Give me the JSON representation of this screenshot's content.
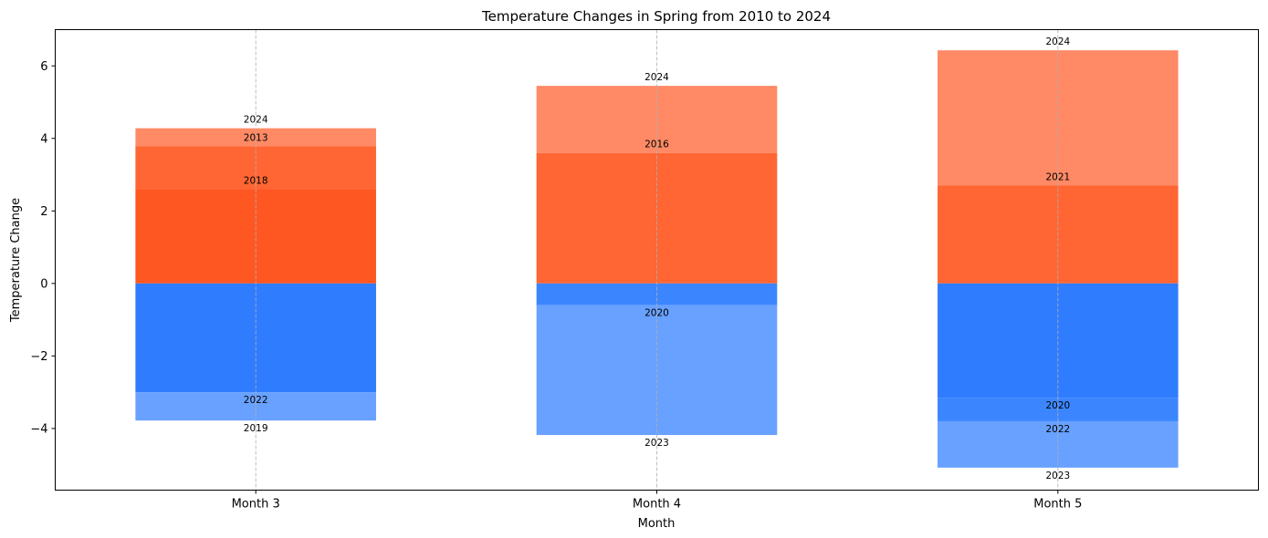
{
  "chart_data": {
    "type": "bar",
    "stacked": true,
    "title": "Temperature Changes in Spring from 2010 to 2024",
    "xlabel": "Month",
    "ylabel": "Temperature Change",
    "ylim": [
      -5.7,
      7.0
    ],
    "yticks": [
      -4,
      -2,
      0,
      2,
      4,
      6
    ],
    "grid": "x-only dashed",
    "categories": [
      "Month 3",
      "Month 4",
      "Month 5"
    ],
    "bars": [
      {
        "category": "Month 3",
        "segments": [
          {
            "year": "2018",
            "value": 2.6,
            "color": "#ff5722"
          },
          {
            "year": "2013",
            "value": 1.18,
            "color": "#ff6633"
          },
          {
            "year": "2024",
            "value": 0.5,
            "color": "#ff8a65"
          },
          {
            "year": "2022",
            "value": -3.0,
            "color": "#2f7cff"
          },
          {
            "year": "2019",
            "value": -0.78,
            "color": "#68a1ff"
          }
        ]
      },
      {
        "category": "Month 4",
        "segments": [
          {
            "year": "2016",
            "value": 3.6,
            "color": "#ff6633"
          },
          {
            "year": "2024",
            "value": 1.85,
            "color": "#ff8a65"
          },
          {
            "year": "2020",
            "value": -0.6,
            "color": "#3b86ff"
          },
          {
            "year": "2023",
            "value": -3.58,
            "color": "#68a1ff"
          }
        ]
      },
      {
        "category": "Month 5",
        "segments": [
          {
            "year": "2021",
            "value": 2.7,
            "color": "#ff6633"
          },
          {
            "year": "2024",
            "value": 3.73,
            "color": "#ff8a65"
          },
          {
            "year": "2020",
            "value": -3.15,
            "color": "#2f7cff"
          },
          {
            "year": "2022",
            "value": -0.65,
            "color": "#3b86ff"
          },
          {
            "year": "2023",
            "value": -1.28,
            "color": "#68a1ff"
          }
        ]
      }
    ]
  }
}
